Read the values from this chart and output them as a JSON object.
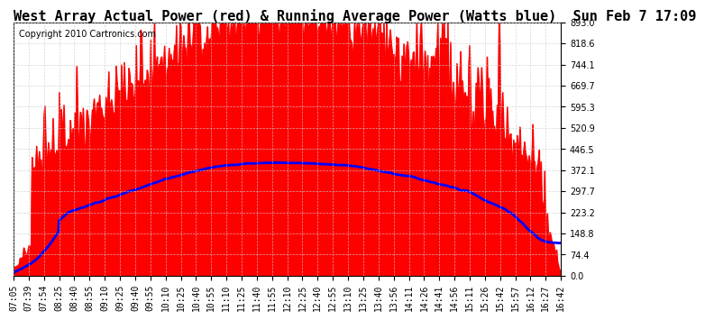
{
  "title": "West Array Actual Power (red) & Running Average Power (Watts blue)  Sun Feb 7 17:09",
  "copyright": "Copyright 2010 Cartronics.com",
  "yticks": [
    0.0,
    74.4,
    148.8,
    223.2,
    297.7,
    372.1,
    446.5,
    520.9,
    595.3,
    669.7,
    744.1,
    818.6,
    893.0
  ],
  "ymax": 893.0,
  "ymin": 0.0,
  "xtick_labels": [
    "07:05",
    "07:39",
    "07:54",
    "08:25",
    "08:40",
    "08:55",
    "09:10",
    "09:25",
    "09:40",
    "09:55",
    "10:10",
    "10:25",
    "10:40",
    "10:55",
    "11:10",
    "11:25",
    "11:40",
    "11:55",
    "12:10",
    "12:25",
    "12:40",
    "12:55",
    "13:10",
    "13:25",
    "13:40",
    "13:56",
    "14:11",
    "14:26",
    "14:41",
    "14:56",
    "15:11",
    "15:26",
    "15:42",
    "15:57",
    "16:12",
    "16:27",
    "16:42"
  ],
  "title_fontsize": 11,
  "copyright_fontsize": 7,
  "axis_tick_fontsize": 7,
  "background_color": "#ffffff",
  "plot_bg_color": "#ffffff",
  "grid_color": "#cccccc",
  "red_color": "#ff0000",
  "blue_color": "#0000ff",
  "fill_color": "#ff0000"
}
